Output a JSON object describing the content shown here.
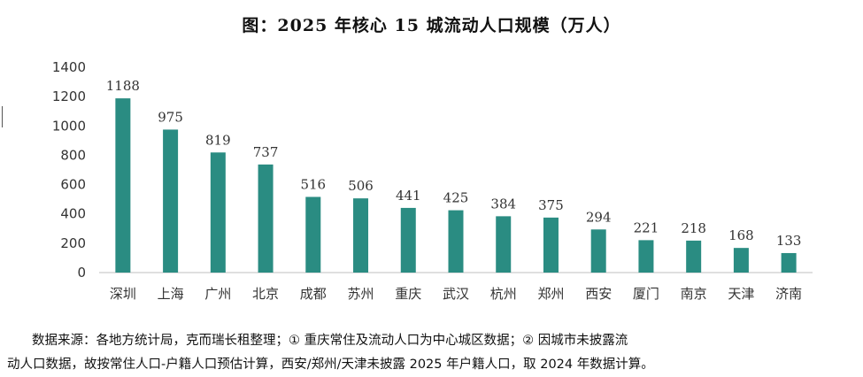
{
  "chart_data": {
    "type": "bar",
    "title": "图：2025 年核心 15 城流动人口规模（万人）",
    "categories": [
      "深圳",
      "上海",
      "广州",
      "北京",
      "成都",
      "苏州",
      "重庆",
      "武汉",
      "杭州",
      "郑州",
      "西安",
      "厦门",
      "南京",
      "天津",
      "济南"
    ],
    "values": [
      1188,
      975,
      819,
      737,
      516,
      506,
      441,
      425,
      384,
      375,
      294,
      221,
      218,
      168,
      133
    ],
    "ylim": [
      0,
      1400
    ],
    "yticks": [
      0,
      200,
      400,
      600,
      800,
      1000,
      1200,
      1400
    ],
    "grid": false,
    "legend": "none",
    "bar_color": "#2a8c82"
  },
  "footnote": {
    "line1": "数据来源：各地方统计局，克而瑞长租整理；① 重庆常住及流动人口为中心城区数据；② 因城市未披露流",
    "line2": "动人口数据，故按常住人口-户籍人口预估计算，西安/郑州/天津未披露 2025 年户籍人口，取 2024 年数据计算。"
  }
}
